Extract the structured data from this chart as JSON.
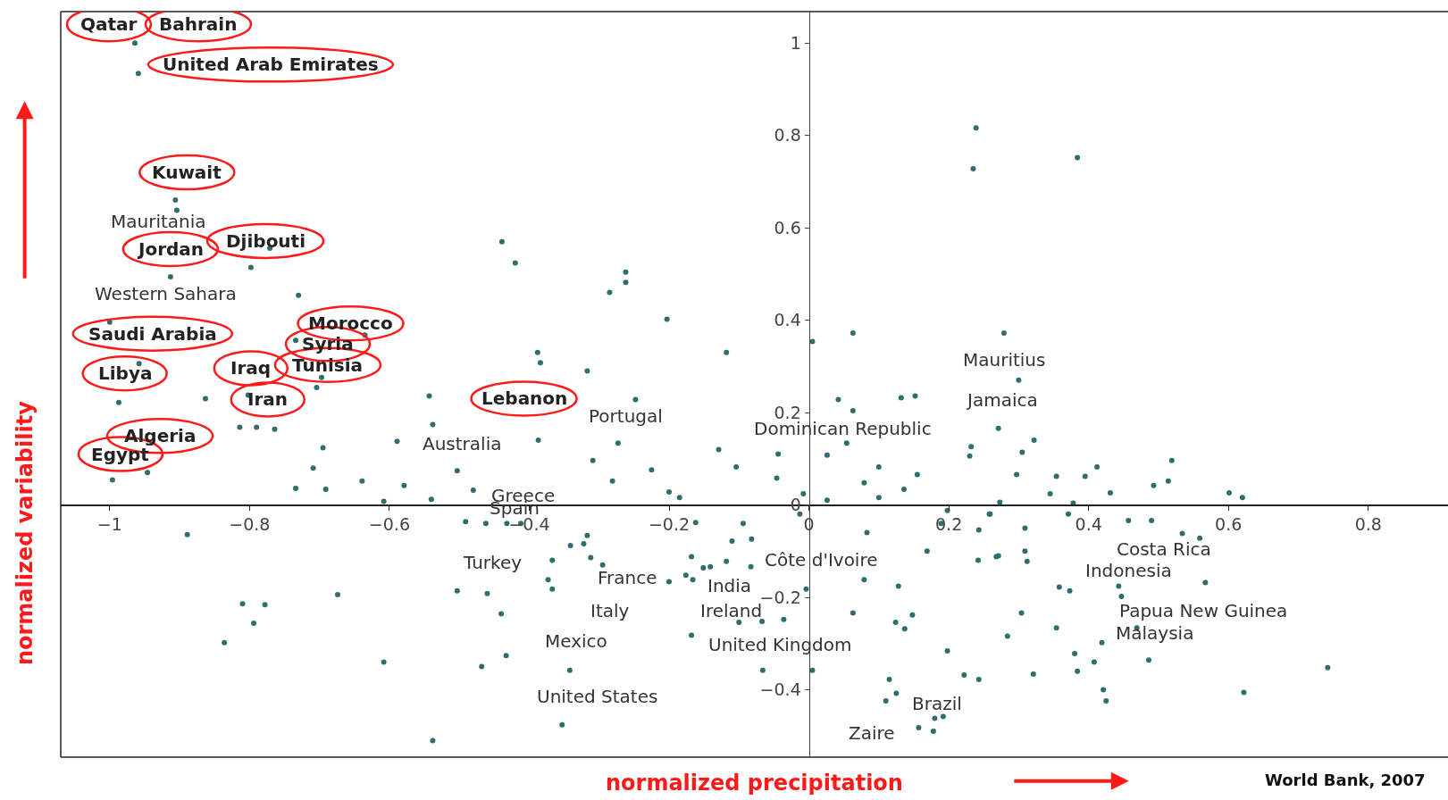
{
  "chart_data": {
    "type": "scatter",
    "xlabel": "normalized precipitation",
    "ylabel": "normalized variability",
    "xlim": [
      -1.07,
      0.914
    ],
    "ylim": [
      -0.546,
      1.068
    ],
    "xticks": [
      {
        "value": -1,
        "label": "−1"
      },
      {
        "value": -0.8,
        "label": "−0.8"
      },
      {
        "value": -0.6,
        "label": "−0.6"
      },
      {
        "value": -0.4,
        "label": "−0.4"
      },
      {
        "value": -0.2,
        "label": "−0.2"
      },
      0,
      0.2,
      0.4,
      0.6,
      0.8
    ],
    "yticks": [
      {
        "value": -0.4,
        "label": "−0.4"
      },
      {
        "value": -0.2,
        "label": "−0.2"
      },
      0,
      0.2,
      0.4,
      0.6,
      0.8,
      1
    ],
    "marker": "circle",
    "series": [
      {
        "color": "#2e6e6e",
        "x": [
          -0.964,
          -0.959,
          -0.906,
          -0.904,
          -0.913,
          -0.798,
          -0.771,
          -0.73,
          -1.0,
          -0.635,
          -0.734,
          -0.697,
          -0.704,
          -0.958,
          -0.802,
          -0.863,
          -0.987,
          -0.814,
          -0.79,
          -0.764,
          -0.946,
          -0.996,
          -0.695,
          -0.709,
          -0.734,
          -0.691,
          -0.639,
          -0.579,
          -0.589,
          -0.608,
          -0.543,
          -0.538,
          -0.503,
          -0.54,
          -0.48,
          -0.387,
          -0.889,
          -0.81,
          -0.778,
          -0.794,
          -0.836,
          -0.674,
          -0.608,
          -0.538,
          -0.491,
          -0.462,
          -0.432,
          -0.412,
          -0.503,
          -0.46,
          -0.44,
          -0.433,
          -0.468,
          -0.439,
          -0.42,
          -0.388,
          -0.384,
          -0.262,
          -0.262,
          -0.285,
          -0.203,
          -0.118,
          -0.317,
          -0.248,
          -0.273,
          -0.309,
          -0.225,
          -0.281,
          -0.129,
          -0.104,
          -0.044,
          -0.046,
          -0.2,
          -0.185,
          -0.008,
          0.005,
          0.063,
          0.042,
          0.063,
          0.132,
          0.152,
          0.279,
          0.3,
          0.271,
          0.232,
          0.23,
          0.305,
          0.297,
          0.054,
          0.026,
          0.1,
          0.155,
          0.079,
          0.1,
          0.136,
          0.026,
          0.239,
          0.235,
          0.384,
          0.322,
          0.354,
          0.395,
          0.412,
          0.345,
          0.431,
          0.493,
          0.514,
          0.519,
          0.601,
          0.62,
          0.273,
          0.378,
          0.259,
          0.309,
          0.371,
          0.457,
          0.49,
          0.268,
          0.309,
          0.312,
          0.358,
          0.373,
          0.443,
          0.447,
          0.304,
          0.354,
          0.284,
          0.419,
          0.469,
          0.38,
          0.408,
          0.486,
          0.321,
          0.384,
          0.421,
          0.425,
          0.567,
          0.742,
          0.622,
          0.534,
          0.559,
          -0.162,
          -0.11,
          -0.094,
          -0.082,
          -0.341,
          -0.322,
          -0.317,
          -0.367,
          -0.373,
          -0.367,
          -0.312,
          -0.295,
          -0.2,
          -0.176,
          -0.166,
          -0.168,
          -0.151,
          -0.141,
          -0.118,
          -0.083,
          -0.1,
          -0.067,
          -0.036,
          -0.168,
          -0.342,
          -0.066,
          0.005,
          -0.353,
          -0.013,
          -0.004,
          0.083,
          0.079,
          0.128,
          0.063,
          0.148,
          0.124,
          0.137,
          0.198,
          0.169,
          0.189,
          0.198,
          0.242,
          0.222,
          0.243,
          0.115,
          0.125,
          0.11,
          0.18,
          0.192,
          0.157,
          0.178,
          0.243,
          0.258,
          0.271
        ],
        "values": [
          1.0,
          0.934,
          0.66,
          0.638,
          0.494,
          0.514,
          0.556,
          0.454,
          0.396,
          0.368,
          0.356,
          0.276,
          0.254,
          0.306,
          0.238,
          0.23,
          0.222,
          0.168,
          0.168,
          0.164,
          0.07,
          0.054,
          0.124,
          0.08,
          0.036,
          0.034,
          0.052,
          0.042,
          0.138,
          0.008,
          0.236,
          0.174,
          0.074,
          0.012,
          0.032,
          0.14,
          -0.064,
          -0.214,
          -0.216,
          -0.256,
          -0.298,
          -0.194,
          -0.34,
          -0.51,
          -0.036,
          -0.04,
          -0.04,
          -0.04,
          -0.186,
          -0.192,
          -0.236,
          -0.326,
          -0.35,
          0.57,
          0.524,
          0.33,
          0.308,
          0.504,
          0.482,
          0.46,
          0.402,
          0.33,
          0.29,
          0.228,
          0.134,
          0.096,
          0.076,
          0.052,
          0.12,
          0.082,
          0.11,
          0.058,
          0.028,
          0.016,
          0.024,
          0.354,
          0.372,
          0.228,
          0.204,
          0.232,
          0.236,
          0.372,
          0.27,
          0.166,
          0.126,
          0.106,
          0.114,
          0.066,
          0.134,
          0.108,
          0.082,
          0.066,
          0.048,
          0.016,
          0.034,
          0.01,
          0.816,
          0.728,
          0.752,
          0.14,
          0.062,
          0.062,
          0.082,
          0.024,
          0.026,
          0.042,
          0.052,
          0.096,
          0.026,
          0.016,
          0.006,
          0.004,
          -0.02,
          -0.05,
          -0.02,
          -0.034,
          -0.034,
          -0.112,
          -0.1,
          -0.122,
          -0.178,
          -0.186,
          -0.176,
          -0.198,
          -0.234,
          -0.266,
          -0.284,
          -0.298,
          -0.266,
          -0.322,
          -0.34,
          -0.336,
          -0.366,
          -0.36,
          -0.4,
          -0.424,
          -0.168,
          -0.352,
          -0.406,
          -0.062,
          -0.072,
          -0.038,
          -0.078,
          -0.04,
          -0.074,
          -0.088,
          -0.084,
          -0.066,
          -0.12,
          -0.162,
          -0.182,
          -0.114,
          -0.13,
          -0.166,
          -0.152,
          -0.162,
          -0.112,
          -0.136,
          -0.134,
          -0.122,
          -0.134,
          -0.254,
          -0.252,
          -0.248,
          -0.282,
          -0.358,
          -0.358,
          -0.358,
          -0.476,
          -0.02,
          -0.182,
          -0.06,
          -0.162,
          -0.176,
          -0.234,
          -0.238,
          -0.254,
          -0.268,
          -0.316,
          -0.1,
          -0.04,
          -0.012,
          -0.12,
          -0.368,
          -0.378,
          -0.378,
          -0.408,
          -0.424,
          -0.462,
          -0.458,
          -0.482,
          -0.49,
          -0.054,
          -0.02,
          -0.11
        ]
      }
    ],
    "annotations": [
      {
        "text": "Qatar",
        "x": -0.964,
        "y": 1.0
      },
      {
        "text": "Bahrain",
        "x": -0.964,
        "y": 1.0
      },
      {
        "text": "United Arab Emirates",
        "x": -0.959,
        "y": 0.934
      },
      {
        "text": "Kuwait",
        "x": -0.906,
        "y": 0.66
      },
      {
        "text": "Mauritania",
        "x": -0.904,
        "y": 0.638
      },
      {
        "text": "Jordan",
        "x": -0.913,
        "y": 0.494
      },
      {
        "text": "Djibouti",
        "x": -0.771,
        "y": 0.556
      },
      {
        "text": "Western Sahara",
        "x": -0.913,
        "y": 0.494
      },
      {
        "text": "Saudi Arabia",
        "x": -1.0,
        "y": 0.396
      },
      {
        "text": "Morocco",
        "x": -0.635,
        "y": 0.368
      },
      {
        "text": "Syria",
        "x": -0.734,
        "y": 0.356
      },
      {
        "text": "Tunisia",
        "x": -0.697,
        "y": 0.276
      },
      {
        "text": "Iraq",
        "x": -0.802,
        "y": 0.238
      },
      {
        "text": "Libya",
        "x": -0.958,
        "y": 0.306
      },
      {
        "text": "Iran",
        "x": -0.802,
        "y": 0.238
      },
      {
        "text": "Lebanon",
        "x": -0.543,
        "y": 0.236
      },
      {
        "text": "Portugal",
        "x": -0.248,
        "y": 0.228
      },
      {
        "text": "Dominican Republic",
        "x": 0.054,
        "y": 0.134
      },
      {
        "text": "Mauritius",
        "x": 0.3,
        "y": 0.27
      },
      {
        "text": "Jamaica",
        "x": 0.271,
        "y": 0.166
      },
      {
        "text": "Algeria",
        "x": -0.946,
        "y": 0.07
      },
      {
        "text": "Egypt",
        "x": -0.996,
        "y": 0.054
      },
      {
        "text": "Australia",
        "x": -0.503,
        "y": 0.074
      },
      {
        "text": "Greece",
        "x": -0.48,
        "y": 0.032
      },
      {
        "text": "Spain",
        "x": -0.432,
        "y": -0.04
      },
      {
        "text": "Turkey",
        "x": -0.462,
        "y": -0.04
      },
      {
        "text": "France",
        "x": -0.295,
        "y": -0.13
      },
      {
        "text": "India",
        "x": -0.118,
        "y": -0.122
      },
      {
        "text": "Côte d'Ivoire",
        "x": -0.004,
        "y": -0.182
      },
      {
        "text": "Italy",
        "x": -0.295,
        "y": -0.13
      },
      {
        "text": "Ireland",
        "x": -0.1,
        "y": -0.254
      },
      {
        "text": "Mexico",
        "x": -0.342,
        "y": -0.358
      },
      {
        "text": "United Kingdom",
        "x": -0.036,
        "y": -0.248
      },
      {
        "text": "United States",
        "x": -0.353,
        "y": -0.476
      },
      {
        "text": "Brazil",
        "x": 0.18,
        "y": -0.462
      },
      {
        "text": "Zaire",
        "x": 0.11,
        "y": -0.424
      },
      {
        "text": "Costa Rica",
        "x": 0.534,
        "y": -0.062
      },
      {
        "text": "Indonesia",
        "x": 0.443,
        "y": -0.176
      },
      {
        "text": "Papua New Guinea",
        "x": 0.567,
        "y": -0.168
      },
      {
        "text": "Malaysia",
        "x": 0.469,
        "y": -0.266
      },
      "World Bank, 2007"
    ]
  }
}
